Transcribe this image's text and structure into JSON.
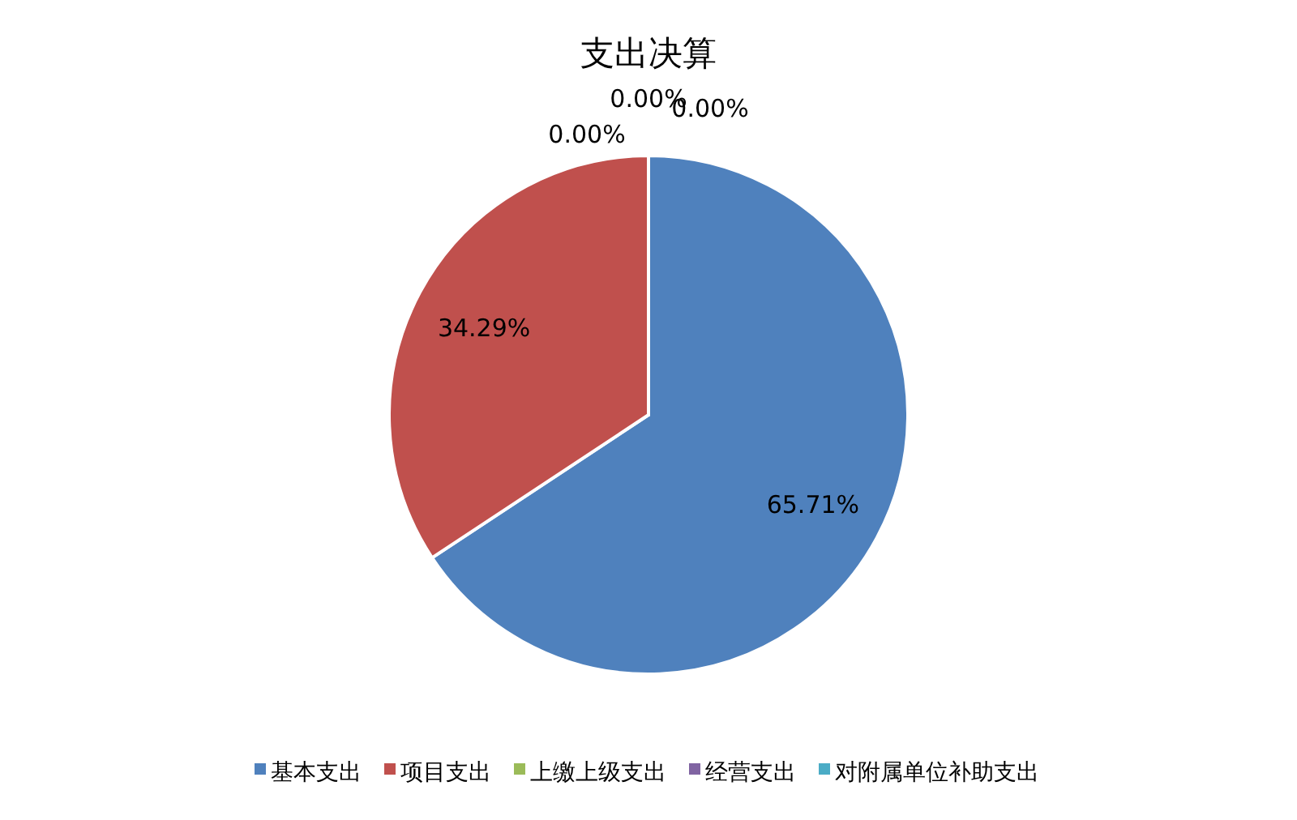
{
  "chart_data": {
    "type": "pie",
    "title": "支出决算",
    "categories": [
      "基本支出",
      "项目支出",
      "上缴上级支出",
      "经营支出",
      "对附属单位补助支出"
    ],
    "values": [
      65.71,
      34.29,
      0,
      0,
      0
    ],
    "colors": [
      "#4f81bd",
      "#c0504d",
      "#9bbb59",
      "#8064a2",
      "#4bacc6"
    ],
    "value_labels": [
      "65.71%",
      "34.29%",
      "0.00%",
      "0.00%",
      "0.00%"
    ],
    "legend": "bottom"
  }
}
